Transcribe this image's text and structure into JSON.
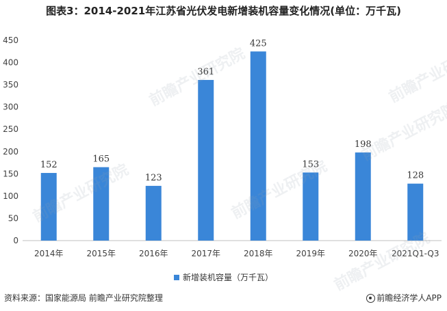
{
  "title": "图表3：2014-2021年江苏省光伏发电新增装机容量变化情况(单位：万千瓦)",
  "source": "资料来源：国家能源局 前瞻产业研究院整理",
  "brand": "前瞻经济学人APP",
  "watermark": "前瞻产业研究院",
  "colors": {
    "bar": "#3a86d8",
    "axis": "#bfbfbf",
    "text": "#404040"
  },
  "chart_data": {
    "type": "bar",
    "categories": [
      "2014年",
      "2015年",
      "2016年",
      "2017年",
      "2018年",
      "2019年",
      "2020年",
      "2021Q1-Q3"
    ],
    "series": [
      {
        "name": "新增装机容量（万千瓦）",
        "values": [
          152,
          165,
          123,
          361,
          425,
          153,
          198,
          128
        ]
      }
    ],
    "ylim": [
      0,
      450
    ],
    "yticks": [
      0,
      50,
      100,
      150,
      200,
      250,
      300,
      350,
      400,
      450
    ],
    "grid": false,
    "legend": "bottom",
    "xlabel": "",
    "ylabel": ""
  }
}
